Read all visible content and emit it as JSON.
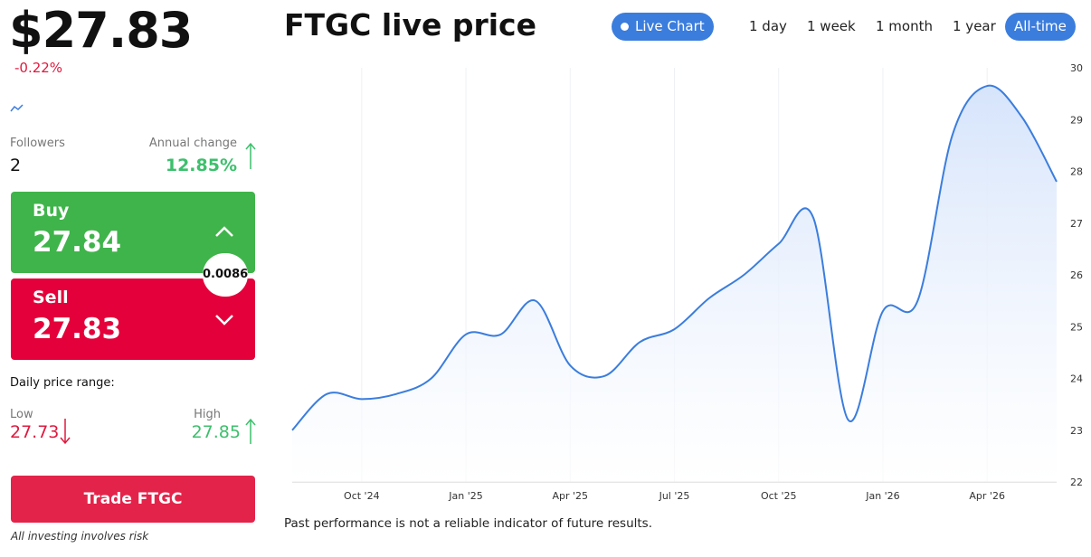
{
  "header": {
    "price": "$27.83",
    "change": "-0.22%",
    "title": "FTGC live price"
  },
  "range_buttons": [
    "Live Chart",
    "1 day",
    "1 week",
    "1 month",
    "1 year",
    "All-time"
  ],
  "stats": {
    "followers_label": "Followers",
    "followers": "2",
    "annual_change_label": "Annual change",
    "annual_change": "12.85%"
  },
  "trade": {
    "buy_label": "Buy",
    "buy": "27.84",
    "sell_label": "Sell",
    "sell": "27.83",
    "spread": "0.0086"
  },
  "daily_range": {
    "label": "Daily price range:",
    "low_label": "Low",
    "low": "27.73",
    "high_label": "High",
    "high": "27.85"
  },
  "cta": {
    "button": "Trade FTGC",
    "risk": "All investing involves risk"
  },
  "disclaimer": "Past performance is not a reliable indicator of future results.",
  "chart_data": {
    "type": "area",
    "color": "#3b7ddd",
    "grid": true,
    "x": [
      "2024-08",
      "2024-09",
      "2024-10",
      "2024-11",
      "2024-12",
      "2025-01",
      "2025-02",
      "2025-03",
      "2025-04",
      "2025-05",
      "2025-06",
      "2025-07",
      "2025-08",
      "2025-09",
      "2025-10",
      "2025-11",
      "2025-12",
      "2026-01",
      "2026-02",
      "2026-03",
      "2026-04",
      "2026-05",
      "2026-06"
    ],
    "values": [
      23.0,
      23.7,
      23.6,
      23.7,
      24.0,
      24.85,
      24.85,
      25.5,
      24.25,
      24.05,
      24.7,
      24.95,
      25.55,
      26.0,
      26.6,
      27.1,
      23.2,
      25.3,
      25.5,
      28.7,
      29.65,
      29.05,
      27.8
    ],
    "xlim": [
      "2024-08",
      "2026-06"
    ],
    "xticks": [
      {
        "value": "2024-10",
        "label": "Oct '24"
      },
      {
        "value": "2025-01",
        "label": "Jan '25"
      },
      {
        "value": "2025-04",
        "label": "Apr '25"
      },
      {
        "value": "2025-07",
        "label": "Jul '25"
      },
      {
        "value": "2025-10",
        "label": "Oct '25"
      },
      {
        "value": "2026-01",
        "label": "Jan '26"
      },
      {
        "value": "2026-04",
        "label": "Apr '26"
      }
    ],
    "ylim": [
      22,
      30
    ],
    "yticks": [
      22,
      23,
      24,
      25,
      26,
      27,
      28,
      29,
      30
    ]
  }
}
